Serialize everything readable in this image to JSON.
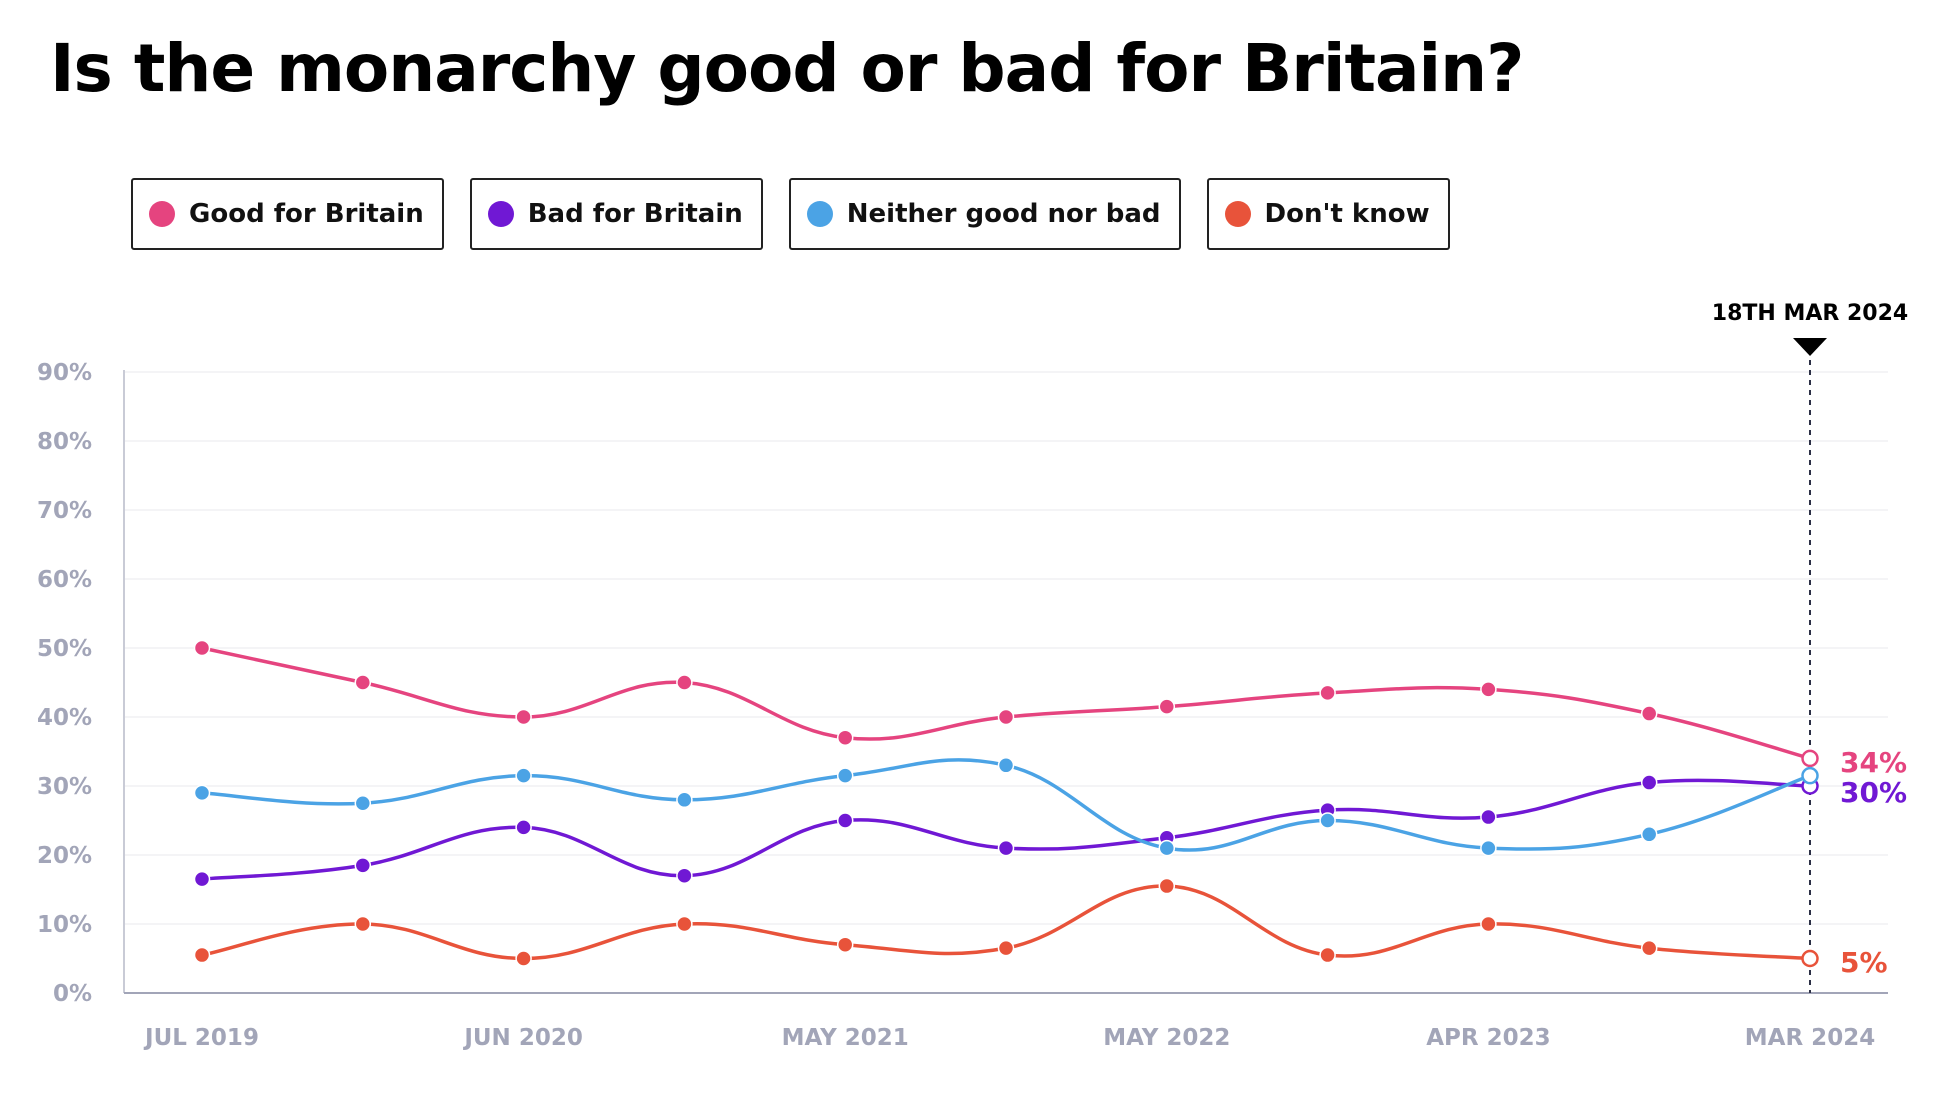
{
  "title": "Is the monarchy good or bad for Britain?",
  "chart_data": {
    "type": "line",
    "title": "Is the monarchy good or bad for Britain?",
    "xlabel": "",
    "ylabel": "",
    "ylim": [
      0,
      90
    ],
    "yticks": [
      "0%",
      "10%",
      "20%",
      "30%",
      "40%",
      "50%",
      "60%",
      "70%",
      "80%",
      "90%"
    ],
    "xtick_labels": [
      "JUL 2019",
      "JUN 2020",
      "MAY 2021",
      "MAY 2022",
      "APR 2023",
      "MAR 2024"
    ],
    "grid": true,
    "legend_position": "top-left",
    "marker_label": "18TH MAR 2024",
    "series": [
      {
        "name": "Good for Britain",
        "color": "#e5447f",
        "values": [
          50,
          45,
          40,
          45,
          37,
          40,
          41.5,
          43.5,
          44,
          40.5,
          34
        ],
        "end_label": "34%"
      },
      {
        "name": "Bad for Britain",
        "color": "#7018d4",
        "values": [
          16.5,
          18.5,
          24,
          17,
          25,
          21,
          22.5,
          26.5,
          25.5,
          30.5,
          30
        ],
        "end_label": "30%"
      },
      {
        "name": "Neither good nor bad",
        "color": "#4ba3e5",
        "values": [
          29,
          27.5,
          31.5,
          28,
          31.5,
          33,
          21,
          25,
          21,
          23,
          31.5
        ],
        "end_label": ""
      },
      {
        "name": "Don't know",
        "color": "#e8533a",
        "values": [
          5.5,
          10,
          5,
          10,
          7,
          6.5,
          15.5,
          5.5,
          10,
          6.5,
          5
        ],
        "end_label": "5%"
      }
    ]
  }
}
